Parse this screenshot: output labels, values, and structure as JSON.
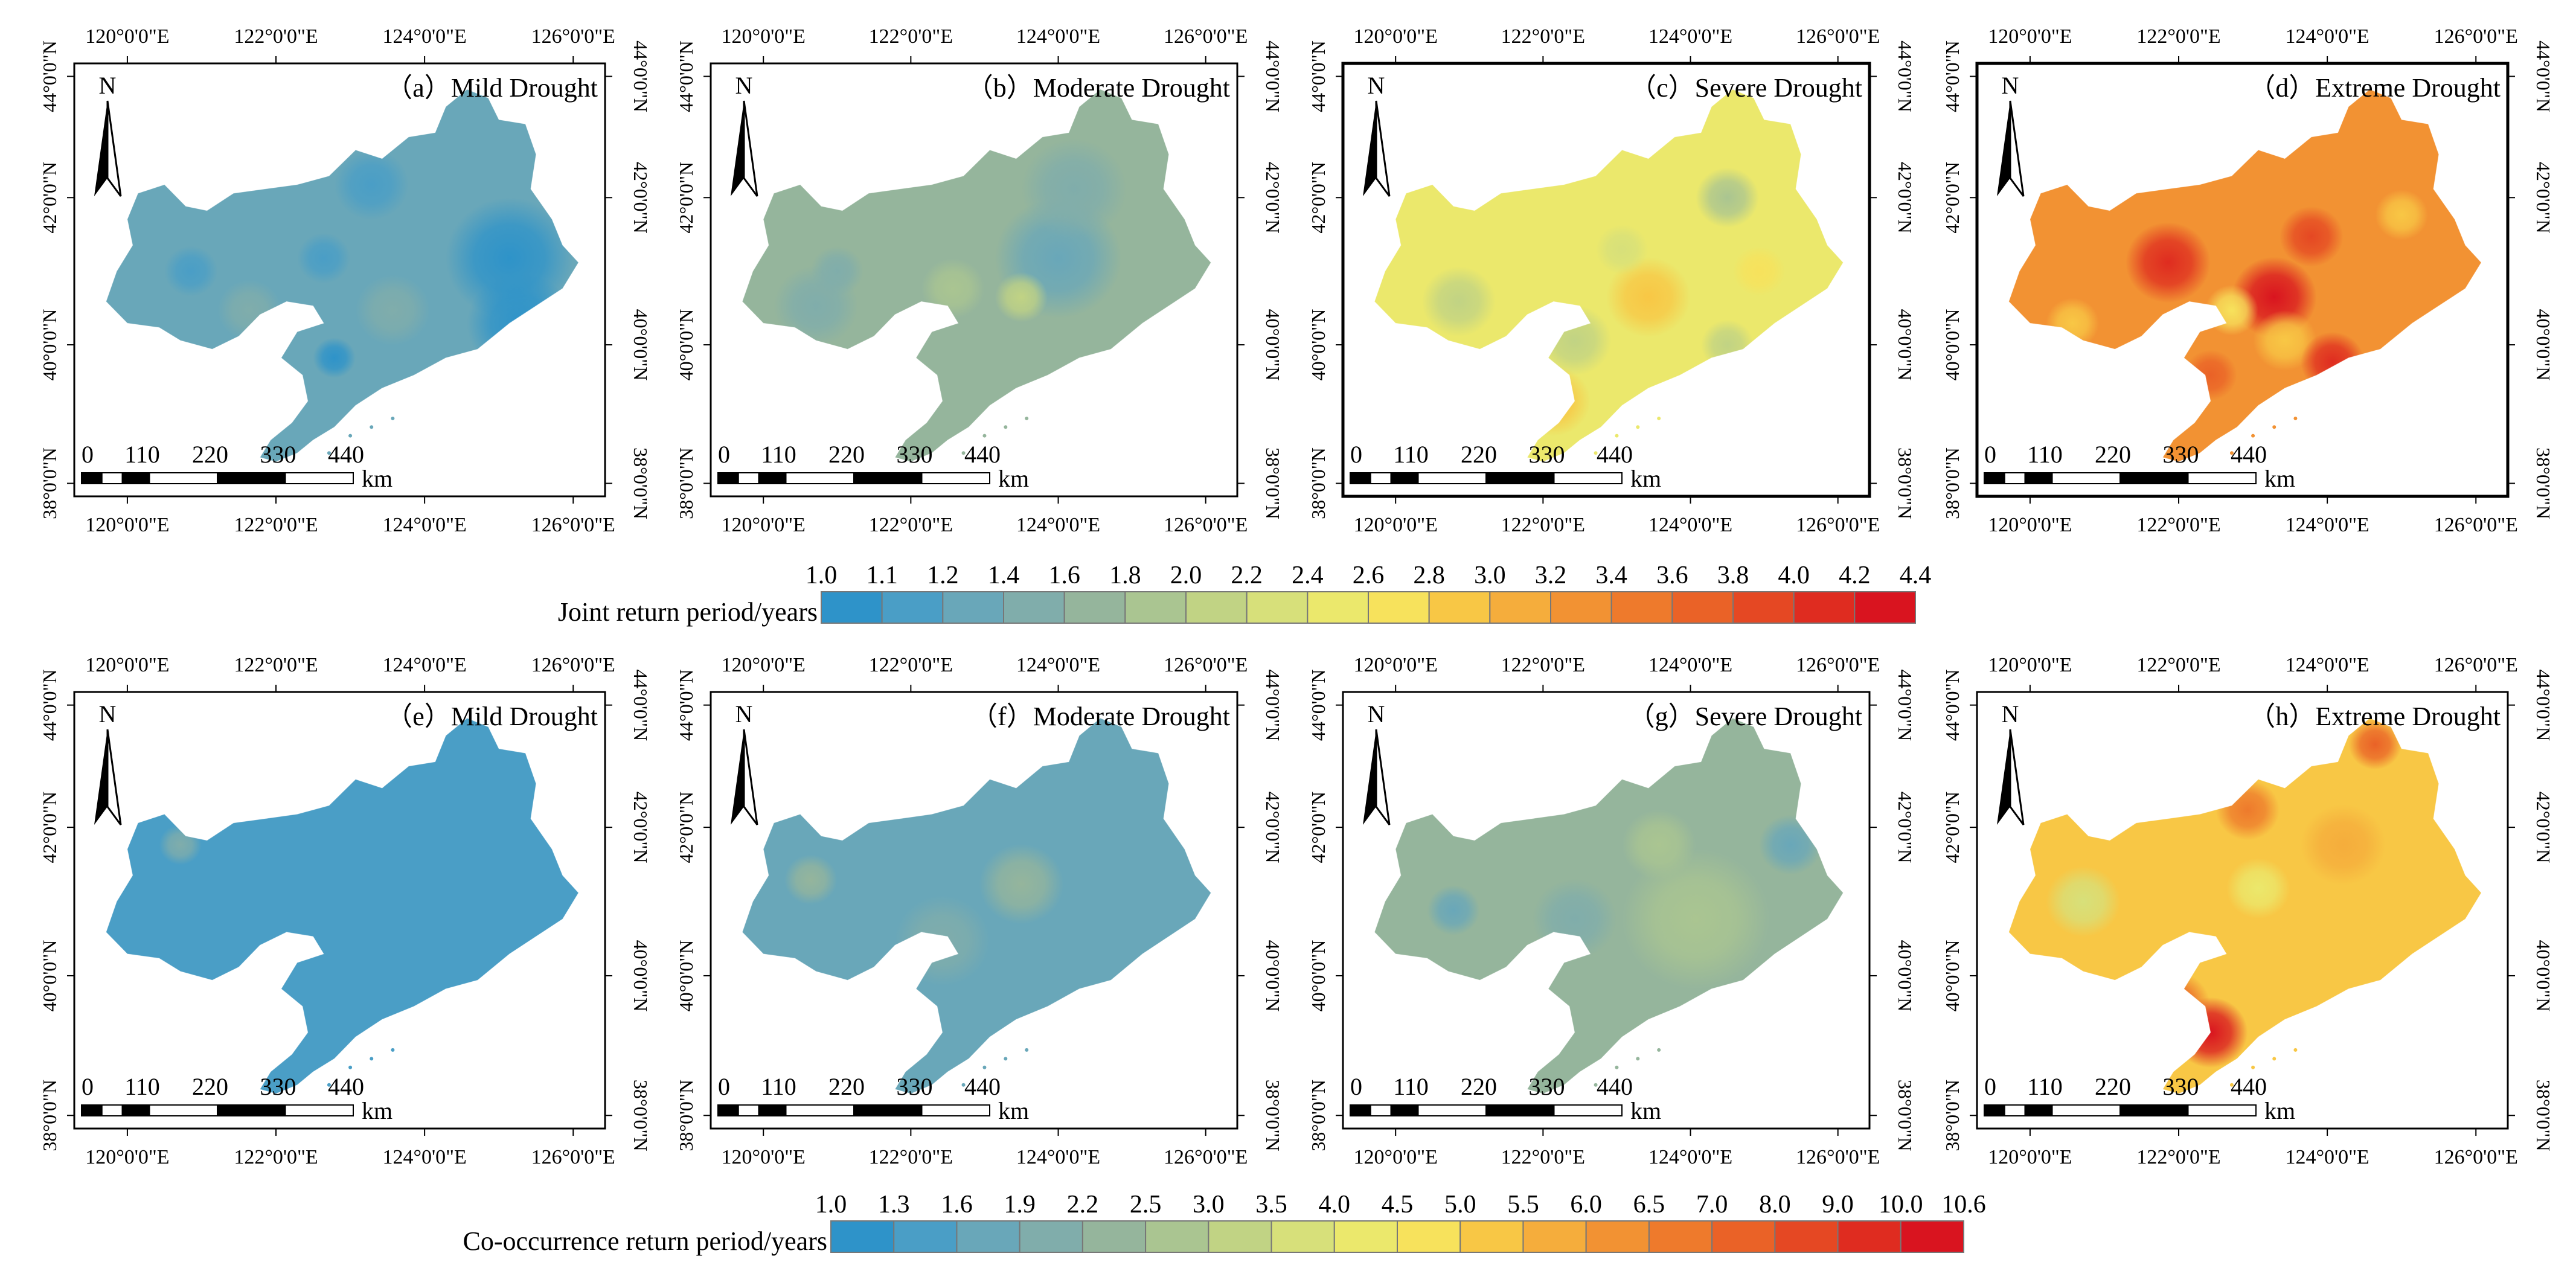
{
  "panels": [
    {
      "id": "a",
      "label": "（a）Mild Drought",
      "row": 0,
      "col": 0,
      "palette": "joint",
      "base": 1.2,
      "spots": [
        [
          0.56,
          0.28,
          1.1,
          0.07
        ],
        [
          0.22,
          0.48,
          1.1,
          0.05
        ],
        [
          0.33,
          0.57,
          1.4,
          0.06
        ],
        [
          0.49,
          0.68,
          1.05,
          0.04
        ],
        [
          0.6,
          0.57,
          1.45,
          0.07
        ],
        [
          0.84,
          0.6,
          1.0,
          0.1
        ],
        [
          0.82,
          0.45,
          1.05,
          0.12
        ],
        [
          0.78,
          0.8,
          1.4,
          0.1
        ],
        [
          0.47,
          0.45,
          1.1,
          0.05
        ]
      ]
    },
    {
      "id": "b",
      "label": "（b）Moderate Drought",
      "row": 0,
      "col": 1,
      "palette": "joint",
      "base": 1.7,
      "spots": [
        [
          0.66,
          0.45,
          1.3,
          0.12
        ],
        [
          0.69,
          0.29,
          1.4,
          0.1
        ],
        [
          0.46,
          0.52,
          1.9,
          0.06
        ],
        [
          0.24,
          0.48,
          1.5,
          0.05
        ],
        [
          0.2,
          0.56,
          1.4,
          0.08
        ],
        [
          0.59,
          0.54,
          2.1,
          0.05
        ],
        [
          0.42,
          0.71,
          1.6,
          0.08
        ],
        [
          0.36,
          0.78,
          1.8,
          0.05
        ]
      ]
    },
    {
      "id": "c",
      "label": "（c）Severe Drought",
      "row": 0,
      "col": 2,
      "palette": "joint",
      "base": 2.4,
      "spots": [
        [
          0.58,
          0.54,
          2.9,
          0.08
        ],
        [
          0.44,
          0.64,
          2.0,
          0.07
        ],
        [
          0.73,
          0.31,
          1.9,
          0.06
        ],
        [
          0.79,
          0.48,
          2.7,
          0.05
        ],
        [
          0.73,
          0.65,
          2.0,
          0.05
        ],
        [
          0.4,
          0.78,
          2.9,
          0.07
        ],
        [
          0.22,
          0.55,
          2.0,
          0.07
        ],
        [
          0.53,
          0.43,
          2.3,
          0.05
        ]
      ]
    },
    {
      "id": "d",
      "label": "（d）Extreme Drought",
      "row": 0,
      "col": 3,
      "palette": "joint",
      "base": 3.2,
      "spots": [
        [
          0.56,
          0.54,
          4.4,
          0.08
        ],
        [
          0.36,
          0.46,
          4.0,
          0.08
        ],
        [
          0.63,
          0.4,
          3.9,
          0.06
        ],
        [
          0.48,
          0.57,
          2.6,
          0.05
        ],
        [
          0.58,
          0.64,
          2.8,
          0.06
        ],
        [
          0.67,
          0.69,
          4.0,
          0.06
        ],
        [
          0.8,
          0.35,
          2.8,
          0.05
        ],
        [
          0.3,
          0.86,
          4.0,
          0.06
        ],
        [
          0.18,
          0.6,
          2.8,
          0.05
        ],
        [
          0.44,
          0.72,
          3.6,
          0.05
        ]
      ]
    },
    {
      "id": "e",
      "label": "（e）Mild Drought",
      "row": 1,
      "col": 0,
      "palette": "cooc",
      "base": 1.45,
      "spots": [
        [
          0.2,
          0.35,
          1.9,
          0.04
        ]
      ]
    },
    {
      "id": "f",
      "label": "（f）Moderate Drought",
      "row": 1,
      "col": 1,
      "palette": "cooc",
      "base": 1.75,
      "spots": [
        [
          0.59,
          0.44,
          2.2,
          0.08
        ],
        [
          0.44,
          0.57,
          2.1,
          0.09
        ],
        [
          0.36,
          0.73,
          3.5,
          0.05
        ],
        [
          0.19,
          0.43,
          2.3,
          0.05
        ],
        [
          0.2,
          0.52,
          1.6,
          0.04
        ],
        [
          0.82,
          0.26,
          1.6,
          0.05
        ]
      ]
    },
    {
      "id": "g",
      "label": "（g）Severe Drought",
      "row": 1,
      "col": 2,
      "palette": "cooc",
      "base": 2.3,
      "spots": [
        [
          0.67,
          0.52,
          2.9,
          0.14
        ],
        [
          0.44,
          0.52,
          1.9,
          0.08
        ],
        [
          0.36,
          0.75,
          4.0,
          0.05
        ],
        [
          0.21,
          0.5,
          1.8,
          0.05
        ],
        [
          0.85,
          0.35,
          1.6,
          0.06
        ],
        [
          0.6,
          0.35,
          2.5,
          0.07
        ]
      ]
    },
    {
      "id": "h",
      "label": "（h）Extreme Drought",
      "row": 1,
      "col": 3,
      "palette": "cooc",
      "base": 5.0,
      "spots": [
        [
          0.44,
          0.78,
          10.6,
          0.07
        ],
        [
          0.51,
          0.27,
          6.5,
          0.06
        ],
        [
          0.75,
          0.12,
          7.0,
          0.05
        ],
        [
          0.53,
          0.45,
          4.2,
          0.06
        ],
        [
          0.2,
          0.48,
          3.8,
          0.07
        ],
        [
          0.69,
          0.35,
          5.8,
          0.08
        ],
        [
          0.37,
          0.72,
          7.0,
          0.07
        ]
      ]
    }
  ],
  "map": {
    "lon_ticks": [
      "120°0'0\"E",
      "122°0'0\"E",
      "124°0'0\"E",
      "126°0'0\"E"
    ],
    "lat_ticks": [
      "38°0'0\"N",
      "40°0'0\"N",
      "42°0'0\"N",
      "44°0'0\"N"
    ],
    "north": "N",
    "scale_labels": [
      "0",
      "110",
      "220",
      "330",
      "440"
    ],
    "scale_unit": "km"
  },
  "legends": {
    "joint": {
      "title": "Joint  return period/years",
      "breaks": [
        "1.0",
        "1.1",
        "1.2",
        "1.4",
        "1.6",
        "1.8",
        "2.0",
        "2.2",
        "2.4",
        "2.6",
        "2.8",
        "3.0",
        "3.2",
        "3.4",
        "3.6",
        "3.8",
        "4.0",
        "4.2",
        "4.4"
      ],
      "values": [
        1.0,
        1.1,
        1.2,
        1.4,
        1.6,
        1.8,
        2.0,
        2.2,
        2.4,
        2.6,
        2.8,
        3.0,
        3.2,
        3.4,
        3.6,
        3.8,
        4.0,
        4.2,
        4.4
      ]
    },
    "cooc": {
      "title": "Co-occurrence return period/years",
      "breaks": [
        "1.0",
        "1.3",
        "1.6",
        "1.9",
        "2.2",
        "2.5",
        "3.0",
        "3.5",
        "4.0",
        "4.5",
        "5.0",
        "5.5",
        "6.0",
        "6.5",
        "7.0",
        "8.0",
        "9.0",
        "10.0",
        "10.6"
      ],
      "values": [
        1.0,
        1.3,
        1.6,
        1.9,
        2.2,
        2.5,
        3.0,
        3.5,
        4.0,
        4.5,
        5.0,
        5.5,
        6.0,
        6.5,
        7.0,
        8.0,
        9.0,
        10.0,
        10.6
      ]
    }
  },
  "colors": [
    "#2e93c9",
    "#4a9ec6",
    "#69a7b9",
    "#80adab",
    "#95b59c",
    "#aac591",
    "#c1d384",
    "#d7e07a",
    "#ebe86c",
    "#f7e25c",
    "#f8c745",
    "#f5ad3c",
    "#f29233",
    "#ee7a2c",
    "#ea6227",
    "#e54823",
    "#df2c20",
    "#d9141f"
  ]
}
